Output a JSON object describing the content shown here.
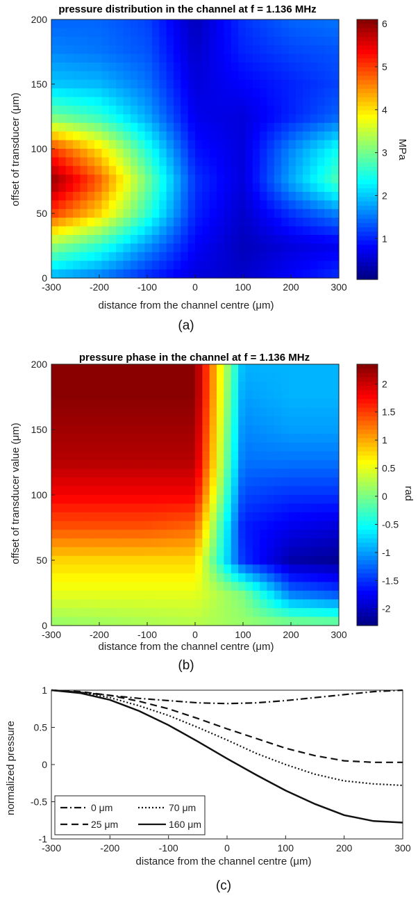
{
  "chart_data": [
    {
      "type": "heatmap",
      "title": "pressure distribution in the channel at f = 1.136 MHz",
      "xlabel": "distance from the channel centre (μm)",
      "ylabel": "offset of transducer (μm)",
      "colorbar_label": "MPa",
      "caption": "(a)",
      "xlim": [
        -300,
        300
      ],
      "ylim": [
        0,
        200
      ],
      "clim": [
        0.05,
        6.1
      ],
      "x_ticks": [
        -300,
        -200,
        -100,
        0,
        100,
        200,
        300
      ],
      "y_ticks": [
        0,
        50,
        100,
        150,
        200
      ],
      "colorbar_ticks": [
        1,
        2,
        3,
        4,
        5,
        6
      ],
      "colormap": "jet",
      "x": [
        -300,
        -200,
        -100,
        0,
        100,
        200,
        300
      ],
      "y": [
        0,
        25,
        50,
        75,
        100,
        125,
        150,
        175,
        200
      ],
      "z": [
        [
          1.8,
          1.5,
          1.0,
          0.6,
          0.5,
          0.8,
          1.1
        ],
        [
          3.2,
          2.6,
          1.7,
          0.8,
          0.4,
          0.6,
          0.7
        ],
        [
          5.0,
          4.1,
          2.6,
          1.0,
          0.5,
          1.1,
          1.6
        ],
        [
          6.0,
          4.8,
          3.0,
          1.1,
          0.6,
          1.8,
          2.8
        ],
        [
          5.0,
          4.0,
          2.5,
          0.9,
          0.6,
          1.6,
          2.4
        ],
        [
          3.0,
          2.6,
          1.8,
          0.7,
          0.6,
          1.0,
          1.4
        ],
        [
          2.0,
          1.9,
          1.5,
          0.6,
          0.8,
          1.0,
          1.2
        ],
        [
          1.6,
          1.5,
          1.3,
          0.5,
          1.0,
          1.2,
          1.3
        ],
        [
          1.4,
          1.4,
          1.2,
          0.4,
          1.1,
          1.4,
          1.5
        ]
      ]
    },
    {
      "type": "heatmap",
      "title": "pressure phase in the channel at f = 1.136 MHz",
      "xlabel": "distance from the channel centre (μm)",
      "ylabel": "offset of transducer value (μm)",
      "colorbar_label": "rad",
      "caption": "(b)",
      "xlim": [
        -300,
        300
      ],
      "ylim": [
        0,
        200
      ],
      "clim": [
        -2.3,
        2.35
      ],
      "x_ticks": [
        -300,
        -200,
        -100,
        0,
        100,
        200,
        300
      ],
      "y_ticks": [
        0,
        50,
        100,
        150,
        200
      ],
      "colorbar_ticks": [
        -2,
        -1.5,
        -1,
        -0.5,
        0,
        0.5,
        1,
        1.5,
        2
      ],
      "colormap": "jet",
      "x": [
        -300,
        -200,
        -100,
        0,
        100,
        200,
        300
      ],
      "y": [
        0,
        25,
        50,
        75,
        100,
        125,
        150,
        175,
        200
      ],
      "z": [
        [
          0.1,
          0.15,
          0.2,
          0.25,
          0.15,
          0.1,
          0.05
        ],
        [
          0.5,
          0.5,
          0.5,
          0.5,
          0.0,
          -1.2,
          -1.4
        ],
        [
          0.8,
          0.8,
          0.8,
          0.8,
          -1.5,
          -2.1,
          -2.2
        ],
        [
          1.4,
          1.4,
          1.4,
          1.3,
          -1.6,
          -1.8,
          -1.9
        ],
        [
          1.8,
          1.8,
          1.8,
          1.8,
          -1.4,
          -1.5,
          -1.5
        ],
        [
          2.1,
          2.1,
          2.1,
          2.1,
          -1.2,
          -1.2,
          -1.2
        ],
        [
          2.2,
          2.2,
          2.2,
          2.2,
          -1.1,
          -1.0,
          -1.0
        ],
        [
          2.3,
          2.3,
          2.3,
          2.3,
          -1.0,
          -0.9,
          -0.9
        ],
        [
          2.3,
          2.3,
          2.3,
          2.3,
          -0.9,
          -0.9,
          -0.9
        ]
      ]
    },
    {
      "type": "line",
      "xlabel": "distance from the channel centre (μm)",
      "ylabel": "normalized pressure",
      "caption": "(c)",
      "xlim": [
        -300,
        300
      ],
      "ylim": [
        -1,
        1
      ],
      "x_ticks": [
        -300,
        -200,
        -100,
        0,
        100,
        200,
        300
      ],
      "y_ticks": [
        -1,
        -0.5,
        0,
        0.5,
        1
      ],
      "legend_position": "bottom-left",
      "x": [
        -300,
        -250,
        -200,
        -150,
        -100,
        -50,
        0,
        50,
        100,
        150,
        200,
        250,
        300
      ],
      "series": [
        {
          "name": "0 μm",
          "style": "dashdot",
          "values": [
            1.0,
            0.97,
            0.93,
            0.89,
            0.86,
            0.83,
            0.82,
            0.83,
            0.86,
            0.9,
            0.94,
            0.98,
            1.0
          ]
        },
        {
          "name": "25 μm",
          "style": "dashed",
          "values": [
            1.0,
            0.98,
            0.93,
            0.85,
            0.75,
            0.62,
            0.48,
            0.35,
            0.22,
            0.12,
            0.05,
            0.03,
            0.03
          ]
        },
        {
          "name": "70 μm",
          "style": "dotted",
          "values": [
            1.0,
            0.97,
            0.9,
            0.79,
            0.66,
            0.5,
            0.33,
            0.15,
            0.0,
            -0.13,
            -0.22,
            -0.26,
            -0.28
          ]
        },
        {
          "name": "160 μm",
          "style": "solid",
          "values": [
            1.0,
            0.96,
            0.87,
            0.72,
            0.53,
            0.31,
            0.08,
            -0.14,
            -0.35,
            -0.53,
            -0.68,
            -0.76,
            -0.78
          ]
        }
      ]
    }
  ]
}
